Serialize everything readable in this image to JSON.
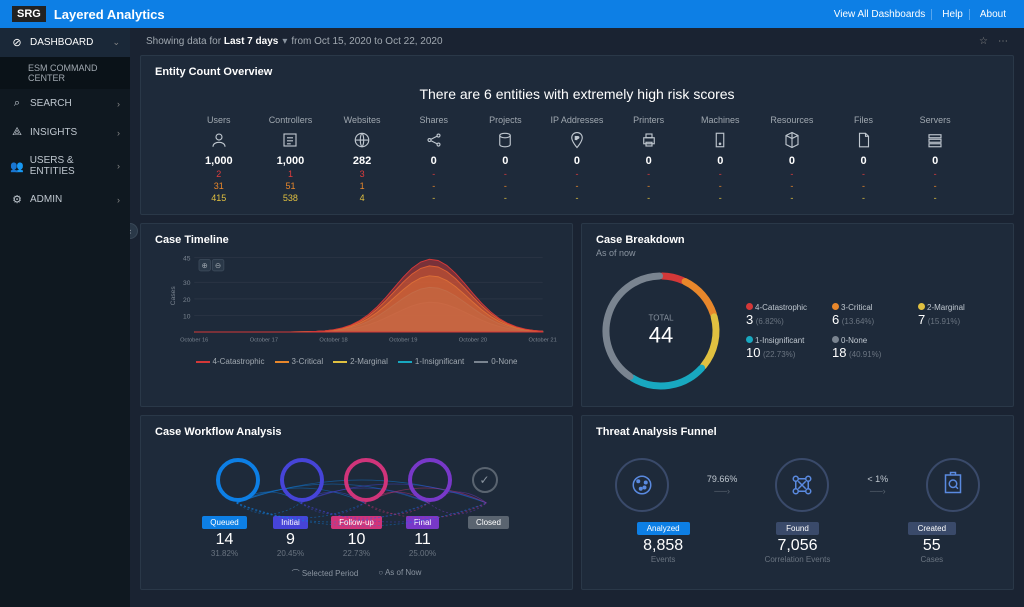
{
  "app": {
    "logo": "SRG",
    "title": "Layered Analytics"
  },
  "top_links": [
    "View All Dashboards",
    "Help",
    "About"
  ],
  "sidebar": [
    {
      "icon": "⊘",
      "label": "DASHBOARD",
      "active": true,
      "expand": "⌄"
    },
    {
      "sub": true,
      "label": "ESM COMMAND CENTER"
    },
    {
      "icon": "⌕",
      "label": "SEARCH"
    },
    {
      "icon": "⟁",
      "label": "INSIGHTS"
    },
    {
      "icon": "👥",
      "label": "USERS & ENTITIES"
    },
    {
      "icon": "⚙",
      "label": "ADMIN"
    }
  ],
  "context": {
    "prefix": "Showing data for",
    "range": "Last 7 days",
    "suffix": "from Oct 15, 2020 to Oct 22, 2020"
  },
  "overview": {
    "title": "Entity Count Overview",
    "headline": "There are 6 entities with extremely high risk scores",
    "columns": [
      {
        "label": "Users",
        "icon": "user",
        "total": "1,000",
        "red": "2",
        "org": "31",
        "yel": "415"
      },
      {
        "label": "Controllers",
        "icon": "list",
        "total": "1,000",
        "red": "1",
        "org": "51",
        "yel": "538"
      },
      {
        "label": "Websites",
        "icon": "globe",
        "total": "282",
        "red": "3",
        "org": "1",
        "yel": "4"
      },
      {
        "label": "Shares",
        "icon": "share",
        "total": "0",
        "red": "-",
        "org": "-",
        "yel": "-"
      },
      {
        "label": "Projects",
        "icon": "db",
        "total": "0",
        "red": "-",
        "org": "-",
        "yel": "-"
      },
      {
        "label": "IP Addresses",
        "icon": "ip",
        "total": "0",
        "red": "-",
        "org": "-",
        "yel": "-"
      },
      {
        "label": "Printers",
        "icon": "printer",
        "total": "0",
        "red": "-",
        "org": "-",
        "yel": "-"
      },
      {
        "label": "Machines",
        "icon": "machine",
        "total": "0",
        "red": "-",
        "org": "-",
        "yel": "-"
      },
      {
        "label": "Resources",
        "icon": "cube",
        "total": "0",
        "red": "-",
        "org": "-",
        "yel": "-"
      },
      {
        "label": "Files",
        "icon": "file",
        "total": "0",
        "red": "-",
        "org": "-",
        "yel": "-"
      },
      {
        "label": "Servers",
        "icon": "server",
        "total": "0",
        "red": "-",
        "org": "-",
        "yel": "-"
      }
    ]
  },
  "timeline": {
    "title": "Case Timeline",
    "ylabel": "Cases",
    "ymax": 45,
    "yticks": [
      10,
      20,
      30,
      45
    ],
    "xticks": [
      "October 16",
      "October 17",
      "October 18",
      "October 19",
      "October 20",
      "October 21"
    ],
    "series": [
      {
        "name": "4-Catastrophic",
        "color": "#d43838",
        "peak": 44
      },
      {
        "name": "3-Critical",
        "color": "#e8872b",
        "peak": 40
      },
      {
        "name": "2-Marginal",
        "color": "#e0c040",
        "peak": 34
      },
      {
        "name": "1-Insignificant",
        "color": "#18a8c0",
        "peak": 27
      },
      {
        "name": "0-None",
        "color": "#7a8490",
        "peak": 18
      }
    ]
  },
  "breakdown": {
    "title": "Case Breakdown",
    "subtitle": "As of now",
    "total_label": "TOTAL",
    "total": "44",
    "items": [
      {
        "name": "4-Catastrophic",
        "color": "#d43838",
        "value": "3",
        "pct": "(6.82%)",
        "arc": 24.5
      },
      {
        "name": "3-Critical",
        "color": "#e8872b",
        "value": "6",
        "pct": "(13.64%)",
        "arc": 49.1
      },
      {
        "name": "2-Marginal",
        "color": "#e0c040",
        "value": "7",
        "pct": "(15.91%)",
        "arc": 57.3
      },
      {
        "name": "1-Insignificant",
        "color": "#18a8c0",
        "value": "10",
        "pct": "(22.73%)",
        "arc": 81.8
      },
      {
        "name": "0-None",
        "color": "#7a8490",
        "value": "18",
        "pct": "(40.91%)",
        "arc": 147.3
      }
    ]
  },
  "workflow": {
    "title": "Case Workflow Analysis",
    "stages": [
      {
        "name": "Queued",
        "color": "#0d7fe5",
        "ring": "#0d7fe5",
        "value": "14",
        "pct": "31.82%"
      },
      {
        "name": "Initial",
        "color": "#4644d8",
        "ring": "#4644d8",
        "value": "9",
        "pct": "20.45%"
      },
      {
        "name": "Follow-up",
        "color": "#d0347a",
        "ring": "#d0347a",
        "value": "10",
        "pct": "22.73%"
      },
      {
        "name": "Final",
        "color": "#7838c8",
        "ring": "#7838c8",
        "value": "11",
        "pct": "25.00%"
      },
      {
        "name": "Closed",
        "color": "#5a6470",
        "ring": "#5a6470",
        "value": "",
        "pct": ""
      }
    ],
    "foot1": "Selected Period",
    "foot2": "As of Now"
  },
  "funnel": {
    "title": "Threat Analysis Funnel",
    "steps": [
      {
        "badge": "Analyzed",
        "badge_color": "#0d7fe5",
        "value": "8,858",
        "label": "Events"
      },
      {
        "badge": "Found",
        "badge_color": "#3a4a6a",
        "value": "7,056",
        "label": "Correlation Events"
      },
      {
        "badge": "Created",
        "badge_color": "#3a4a6a",
        "value": "55",
        "label": "Cases"
      }
    ],
    "arrows": [
      "79.66%",
      "< 1%"
    ]
  },
  "colors": {
    "bg": "#1a2332",
    "panel": "#1e2a3a",
    "accent": "#0d7fe5"
  }
}
